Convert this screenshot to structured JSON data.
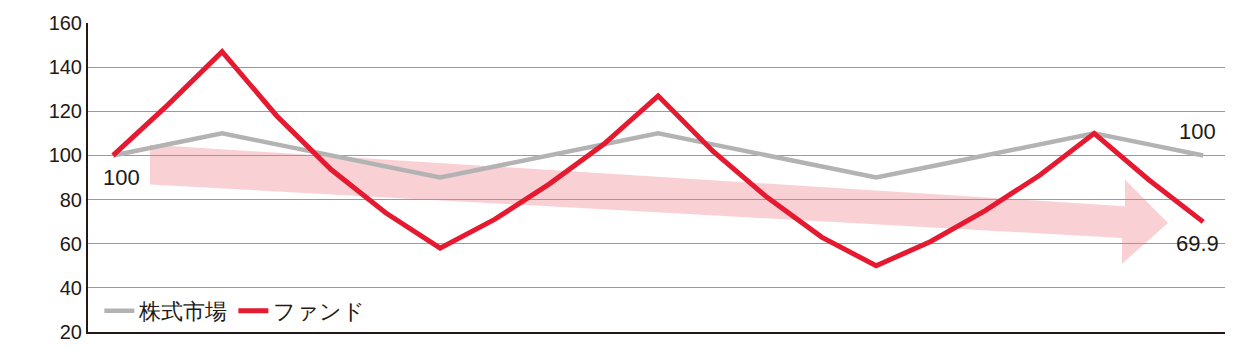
{
  "chart_data": {
    "type": "line",
    "x": [
      0,
      1,
      2,
      3,
      4,
      5,
      6,
      7,
      8,
      9,
      10,
      11,
      12,
      13,
      14,
      15,
      16,
      17,
      18,
      19,
      20
    ],
    "series": [
      {
        "name": "株式市場",
        "color": "#b3b3b3",
        "values": [
          100,
          105,
          110,
          105,
          100,
          95,
          90,
          95,
          100,
          105,
          110,
          105,
          100,
          95,
          90,
          95,
          100,
          105,
          110,
          105,
          100
        ]
      },
      {
        "name": "ファンド",
        "color": "#e5192f",
        "values": [
          100,
          122.8,
          147,
          118,
          93.6,
          74,
          58,
          71,
          87,
          105,
          127,
          102,
          81,
          63,
          50,
          61,
          75,
          91,
          110,
          89,
          69.9
        ]
      }
    ],
    "annotations": [
      {
        "text": "100",
        "x": 0,
        "y": 100,
        "position": "below"
      },
      {
        "text": "100",
        "x": 20,
        "y": 100,
        "position": "above"
      },
      {
        "text": "69.9",
        "x": 20,
        "y": 69.9,
        "position": "below"
      }
    ],
    "xlim": [
      -0.46,
      20.4
    ],
    "xticks": [],
    "ylim": [
      20,
      160
    ],
    "yticks": [
      20,
      40,
      60,
      80,
      100,
      120,
      140,
      160
    ],
    "grid": true,
    "legend": "lower left",
    "tick_labels": "y"
  }
}
